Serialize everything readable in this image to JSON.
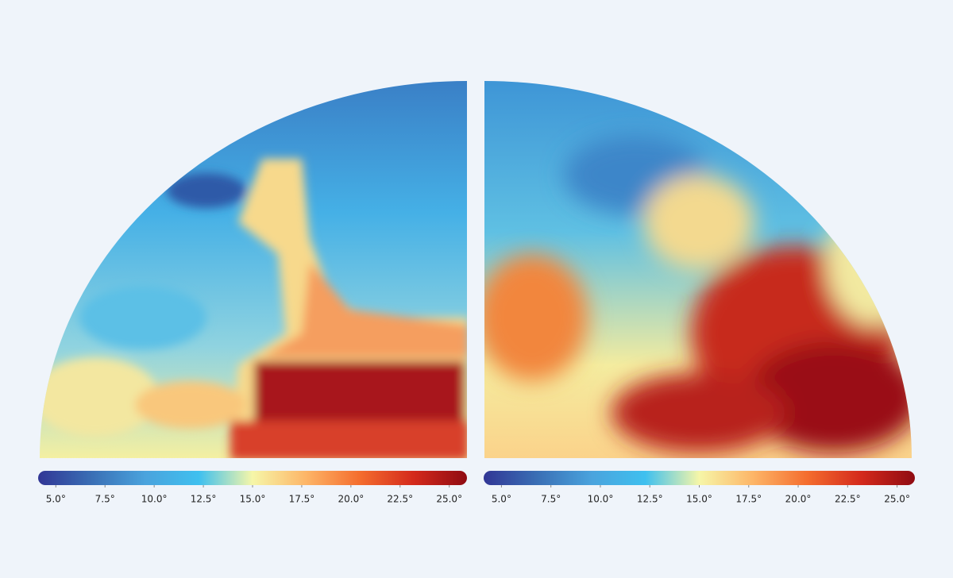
{
  "panels": [
    {
      "colorbar": {
        "clim": [
          4.1,
          25.9
        ],
        "colormap": [
          "#313695",
          "#3a6fb5",
          "#4aa3dd",
          "#3fc0ef",
          "#f6f6a8",
          "#fdb567",
          "#f46d2e",
          "#d42a1c",
          "#8f0b12"
        ],
        "ticks": [
          {
            "value": 5,
            "label": "5.0°"
          },
          {
            "value": 7.5,
            "label": "7.5°"
          },
          {
            "value": 10,
            "label": "10.0°"
          },
          {
            "value": 12.5,
            "label": "12.5°"
          },
          {
            "value": 15,
            "label": "15.0°"
          },
          {
            "value": 17.5,
            "label": "17.5°"
          },
          {
            "value": 20,
            "label": "20.0°"
          },
          {
            "value": 22.5,
            "label": "22.5°"
          },
          {
            "value": 25,
            "label": "25.0°"
          }
        ]
      }
    },
    {
      "colorbar": {
        "clim": [
          4.1,
          25.9
        ],
        "colormap": [
          "#313695",
          "#3a6fb5",
          "#4aa3dd",
          "#3fc0ef",
          "#f6f6a8",
          "#fdb567",
          "#f46d2e",
          "#d42a1c",
          "#8f0b12"
        ],
        "ticks": [
          {
            "value": 5,
            "label": "5.0°"
          },
          {
            "value": 7.5,
            "label": "7.5°"
          },
          {
            "value": 10,
            "label": "10.0°"
          },
          {
            "value": 12.5,
            "label": "12.5°"
          },
          {
            "value": 15,
            "label": "15.0°"
          },
          {
            "value": 17.5,
            "label": "17.5°"
          },
          {
            "value": 20,
            "label": "20.0°"
          },
          {
            "value": 22.5,
            "label": "22.5°"
          },
          {
            "value": 25,
            "label": "25.0°"
          }
        ]
      }
    }
  ]
}
